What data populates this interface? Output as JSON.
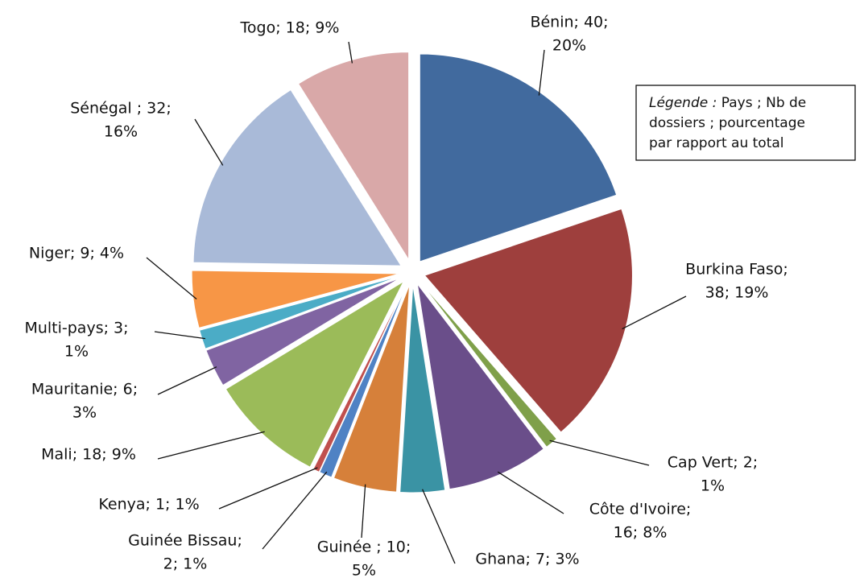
{
  "chart_data": {
    "type": "pie",
    "values": [
      40,
      38,
      2,
      16,
      7,
      10,
      2,
      1,
      18,
      6,
      3,
      9,
      32,
      18
    ],
    "value_labels": [
      [
        "Bénin; 40;",
        "20%"
      ],
      [
        "Burkina Faso;",
        "38; 19%"
      ],
      [
        "Cap Vert; 2;",
        "1%"
      ],
      [
        "Côte d'Ivoire;",
        "16; 8%"
      ],
      [
        "Ghana; 7; 3%"
      ],
      [
        "Guinée ; 10;",
        "5%"
      ],
      [
        "Guinée Bissau;",
        "2; 1%"
      ],
      [
        "Kenya; 1; 1%"
      ],
      [
        "Mali; 18; 9%"
      ],
      [
        "Mauritanie; 6;",
        "3%"
      ],
      [
        "Multi-pays; 3;",
        "1%"
      ],
      [
        "Niger; 9; 4%"
      ],
      [
        "Sénégal ; 32;",
        "16%"
      ],
      [
        "Togo; 18; 9%"
      ]
    ],
    "colors": [
      "#416a9e",
      "#9e3f3d",
      "#7fa04a",
      "#6a4e8a",
      "#3a93a4",
      "#d6803a",
      "#4f82c4",
      "#c0504d",
      "#9bbb59",
      "#8064a2",
      "#4bacc6",
      "#f79646",
      "#a9bad8",
      "#d9a8a8"
    ],
    "legend_note": {
      "heading": "Légende :",
      "lines": [
        "Pays ; Nb de",
        "dossiers ; pourcentage",
        "par rapport au total"
      ]
    }
  }
}
